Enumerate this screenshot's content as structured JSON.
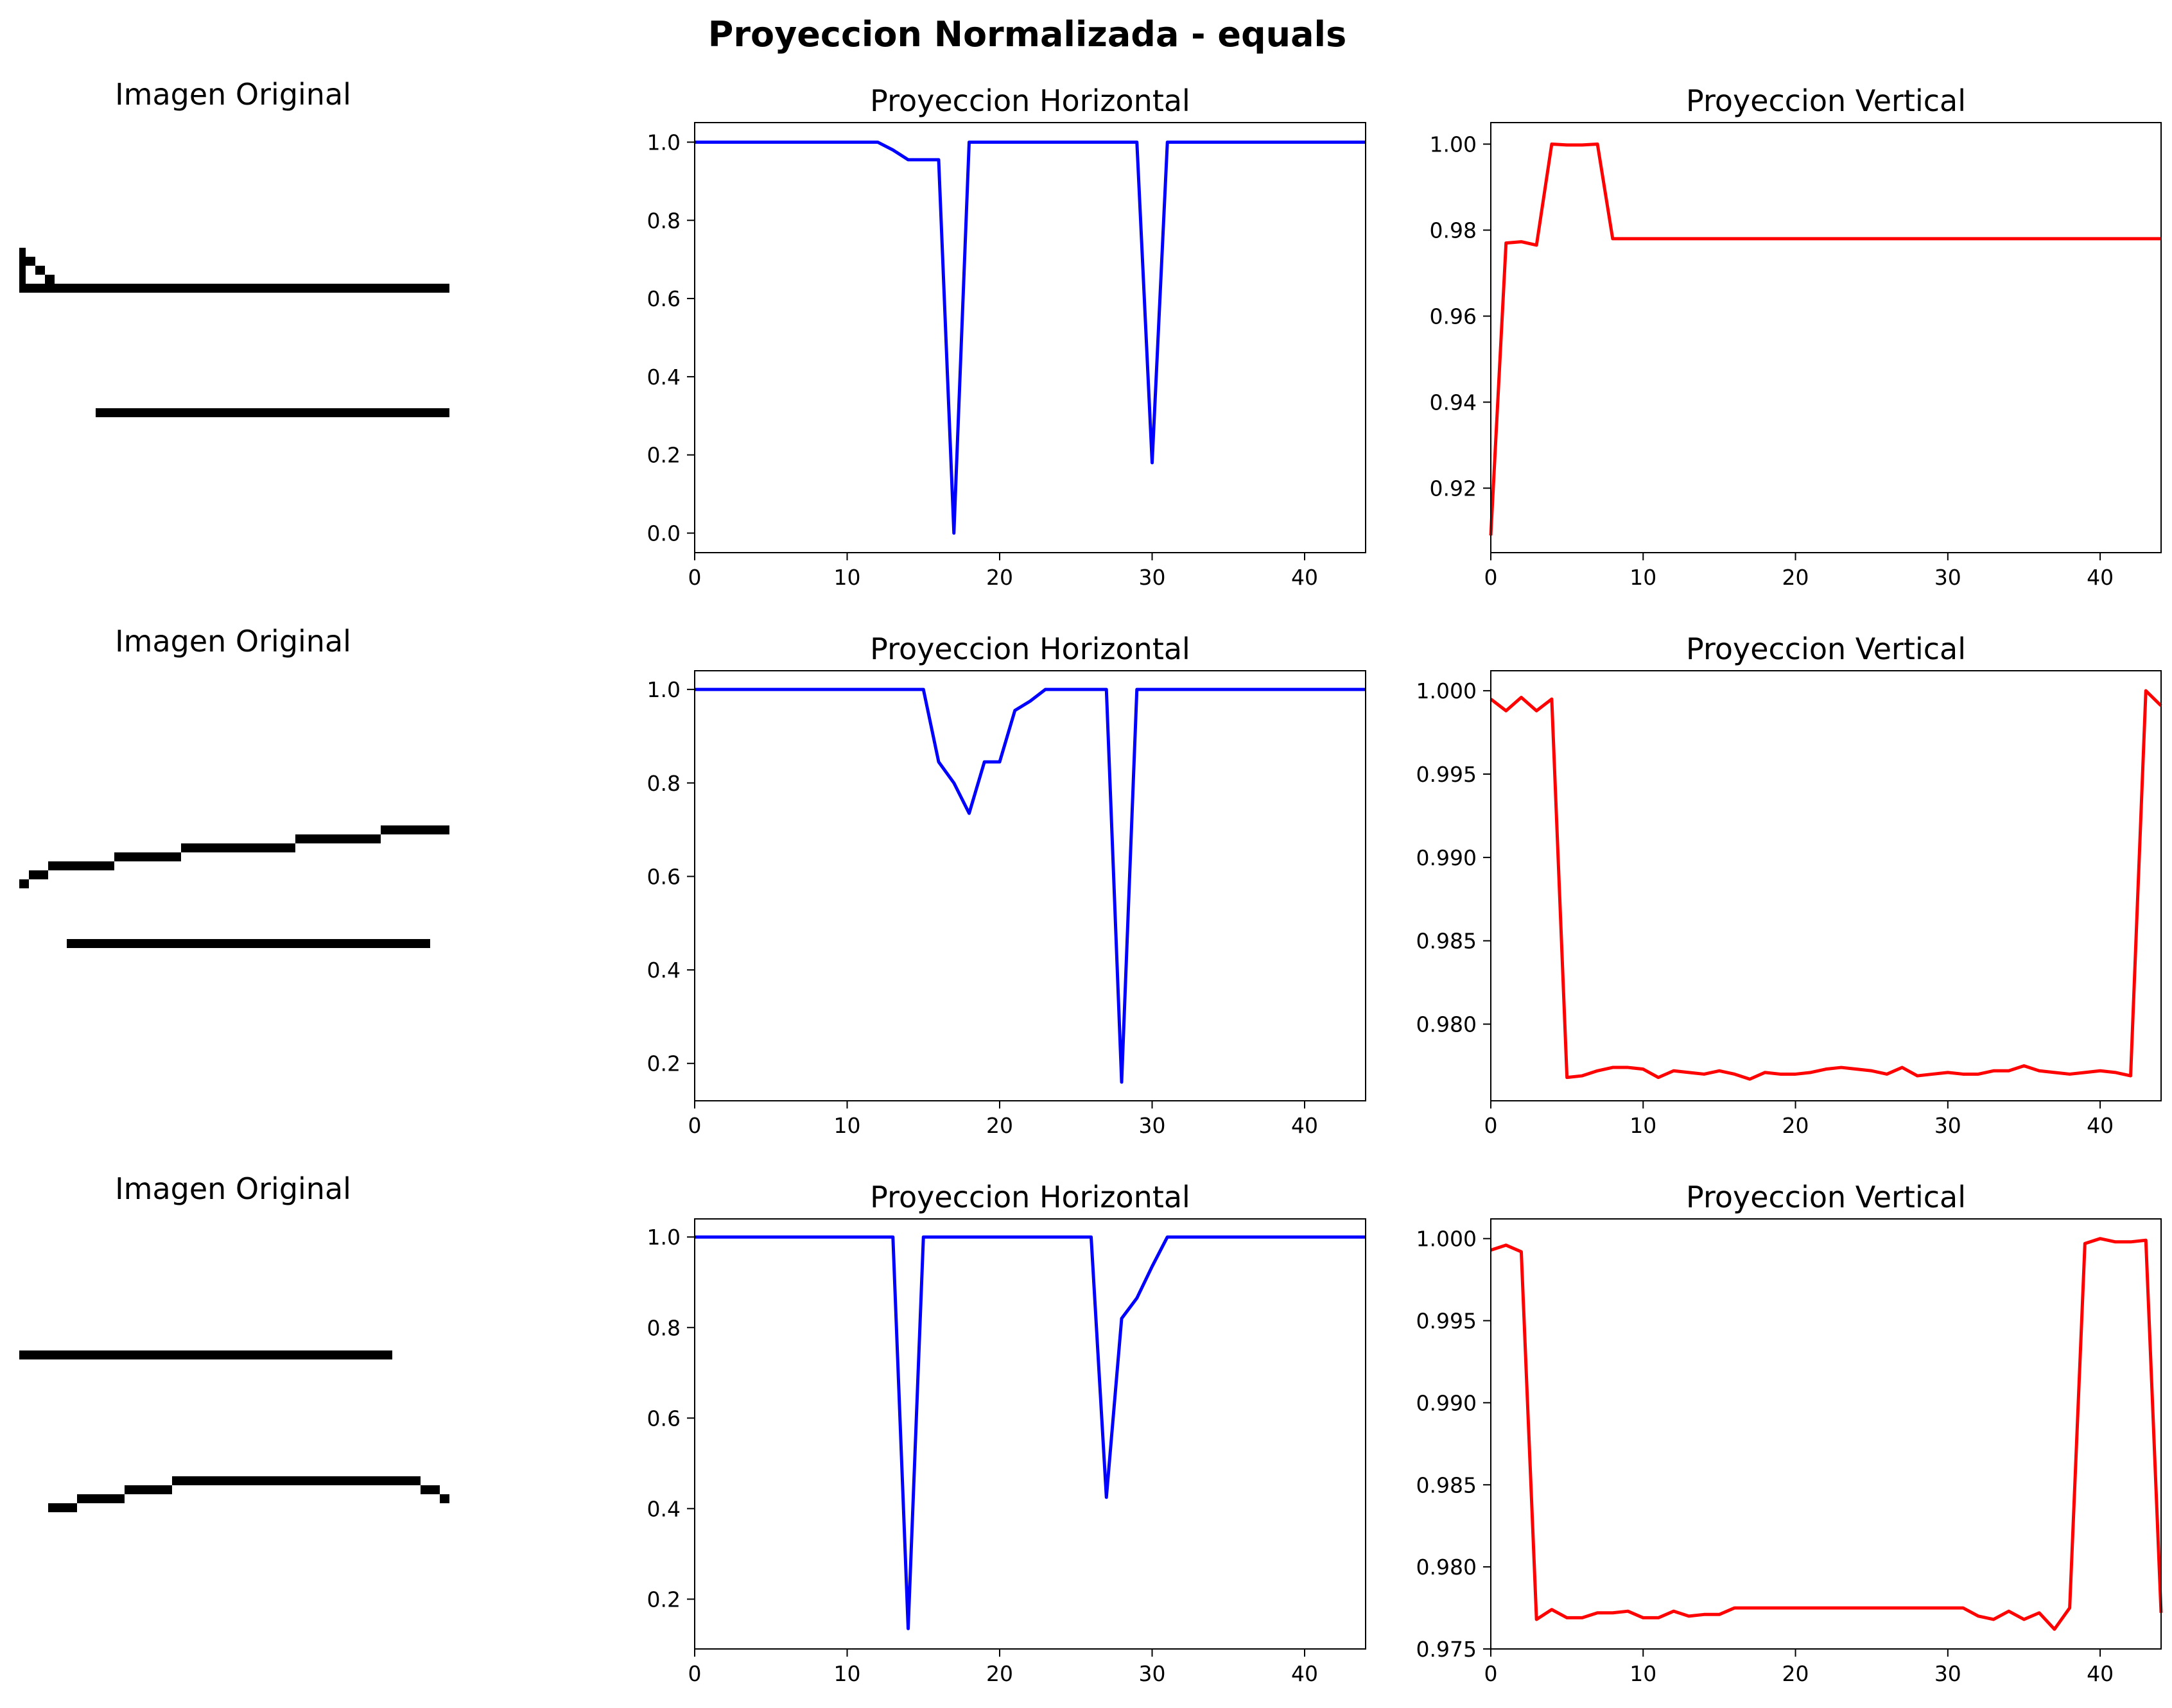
{
  "figure": {
    "title": "Proyeccion Normalizada - equals"
  },
  "colors": {
    "horizontal": "#0000ff",
    "vertical": "#ff0000",
    "ink": "#000000"
  },
  "chart_data": [
    {
      "type": "line",
      "row": 0,
      "column": "horizontal",
      "title": "Proyeccion Horizontal",
      "xlim": [
        0,
        44
      ],
      "ylim": [
        -0.05,
        1.05
      ],
      "x_ticks": [
        0,
        10,
        20,
        30,
        40
      ],
      "y_ticks": [
        0.0,
        0.2,
        0.4,
        0.6,
        0.8,
        1.0
      ],
      "y_tick_labels": [
        "0.0",
        "0.2",
        "0.4",
        "0.6",
        "0.8",
        "1.0"
      ],
      "series": [
        {
          "color": "#0000ff",
          "values": [
            1,
            1,
            1,
            1,
            1,
            1,
            1,
            1,
            1,
            1,
            1,
            1,
            1,
            0.98,
            0.955,
            0.955,
            0.955,
            0,
            1,
            1,
            1,
            1,
            1,
            1,
            1,
            1,
            1,
            1,
            1,
            1,
            0.18,
            1,
            1,
            1,
            1,
            1,
            1,
            1,
            1,
            1,
            1,
            1,
            1,
            1,
            1
          ]
        }
      ]
    },
    {
      "type": "line",
      "row": 0,
      "column": "vertical",
      "title": "Proyeccion Vertical",
      "xlim": [
        0,
        44
      ],
      "ylim": [
        0.905,
        1.005
      ],
      "x_ticks": [
        0,
        10,
        20,
        30,
        40
      ],
      "y_ticks": [
        0.92,
        0.94,
        0.96,
        0.98,
        1.0
      ],
      "y_tick_labels": [
        "0.92",
        "0.94",
        "0.96",
        "0.98",
        "1.00"
      ],
      "series": [
        {
          "color": "#ff0000",
          "values": [
            0.909,
            0.977,
            0.9773,
            0.9765,
            1,
            0.9998,
            0.9998,
            1,
            0.978,
            0.978,
            0.978,
            0.978,
            0.978,
            0.978,
            0.978,
            0.978,
            0.978,
            0.978,
            0.978,
            0.978,
            0.978,
            0.978,
            0.978,
            0.978,
            0.978,
            0.978,
            0.978,
            0.978,
            0.978,
            0.978,
            0.978,
            0.978,
            0.978,
            0.978,
            0.978,
            0.978,
            0.978,
            0.978,
            0.978,
            0.978,
            0.978,
            0.978,
            0.978,
            0.978,
            0.978
          ]
        }
      ]
    },
    {
      "type": "line",
      "row": 1,
      "column": "horizontal",
      "title": "Proyeccion Horizontal",
      "xlim": [
        0,
        44
      ],
      "ylim": [
        0.12,
        1.04
      ],
      "x_ticks": [
        0,
        10,
        20,
        30,
        40
      ],
      "y_ticks": [
        0.2,
        0.4,
        0.6,
        0.8,
        1.0
      ],
      "y_tick_labels": [
        "0.2",
        "0.4",
        "0.6",
        "0.8",
        "1.0"
      ],
      "series": [
        {
          "color": "#0000ff",
          "values": [
            1,
            1,
            1,
            1,
            1,
            1,
            1,
            1,
            1,
            1,
            1,
            1,
            1,
            1,
            1,
            1,
            0.845,
            0.8,
            0.735,
            0.845,
            0.845,
            0.955,
            0.975,
            1,
            1,
            1,
            1,
            1,
            0.16,
            1,
            1,
            1,
            1,
            1,
            1,
            1,
            1,
            1,
            1,
            1,
            1,
            1,
            1,
            1,
            1
          ]
        }
      ]
    },
    {
      "type": "line",
      "row": 1,
      "column": "vertical",
      "title": "Proyeccion Vertical",
      "xlim": [
        0,
        44
      ],
      "ylim": [
        0.9754,
        1.0012
      ],
      "x_ticks": [
        0,
        10,
        20,
        30,
        40
      ],
      "y_ticks": [
        0.98,
        0.985,
        0.99,
        0.995,
        1.0
      ],
      "y_tick_labels": [
        "0.980",
        "0.985",
        "0.990",
        "0.995",
        "1.000"
      ],
      "series": [
        {
          "color": "#ff0000",
          "values": [
            0.9995,
            0.9988,
            0.9996,
            0.9988,
            0.9995,
            0.9768,
            0.9769,
            0.9772,
            0.9774,
            0.9774,
            0.9773,
            0.9768,
            0.9772,
            0.9771,
            0.977,
            0.9772,
            0.977,
            0.9767,
            0.9771,
            0.977,
            0.977,
            0.9771,
            0.9773,
            0.9774,
            0.9773,
            0.9772,
            0.977,
            0.9774,
            0.9769,
            0.977,
            0.9771,
            0.977,
            0.977,
            0.9772,
            0.9772,
            0.9775,
            0.9772,
            0.9771,
            0.977,
            0.9771,
            0.9772,
            0.9771,
            0.9769,
            1.0,
            0.9991
          ]
        }
      ]
    },
    {
      "type": "line",
      "row": 2,
      "column": "horizontal",
      "title": "Proyeccion Horizontal",
      "xlim": [
        0,
        44
      ],
      "ylim": [
        0.09,
        1.04
      ],
      "x_ticks": [
        0,
        10,
        20,
        30,
        40
      ],
      "y_ticks": [
        0.2,
        0.4,
        0.6,
        0.8,
        1.0
      ],
      "y_tick_labels": [
        "0.2",
        "0.4",
        "0.6",
        "0.8",
        "1.0"
      ],
      "series": [
        {
          "color": "#0000ff",
          "values": [
            1,
            1,
            1,
            1,
            1,
            1,
            1,
            1,
            1,
            1,
            1,
            1,
            1,
            1,
            0.135,
            1,
            1,
            1,
            1,
            1,
            1,
            1,
            1,
            1,
            1,
            1,
            1,
            0.425,
            0.82,
            0.865,
            0.935,
            1,
            1,
            1,
            1,
            1,
            1,
            1,
            1,
            1,
            1,
            1,
            1,
            1,
            1
          ]
        }
      ]
    },
    {
      "type": "line",
      "row": 2,
      "column": "vertical",
      "title": "Proyeccion Vertical",
      "xlim": [
        0,
        44
      ],
      "ylim": [
        0.975,
        1.0012
      ],
      "x_ticks": [
        0,
        10,
        20,
        30,
        40
      ],
      "y_ticks": [
        0.975,
        0.98,
        0.985,
        0.99,
        0.995,
        1.0
      ],
      "y_tick_labels": [
        "0.975",
        "0.980",
        "0.985",
        "0.990",
        "0.995",
        "1.000"
      ],
      "series": [
        {
          "color": "#ff0000",
          "values": [
            0.9993,
            0.9996,
            0.9992,
            0.9768,
            0.9774,
            0.9769,
            0.9769,
            0.9772,
            0.9772,
            0.9773,
            0.9769,
            0.9769,
            0.9773,
            0.977,
            0.9771,
            0.9771,
            0.9775,
            0.9775,
            0.9775,
            0.9775,
            0.9775,
            0.9775,
            0.9775,
            0.9775,
            0.9775,
            0.9775,
            0.9775,
            0.9775,
            0.9775,
            0.9775,
            0.9775,
            0.9775,
            0.977,
            0.9768,
            0.9773,
            0.9768,
            0.9772,
            0.9762,
            0.9775,
            0.9997,
            1.0,
            0.9998,
            0.9998,
            0.9999,
            0.9772
          ]
        }
      ]
    }
  ],
  "images": [
    {
      "title": "Imagen Original",
      "row": 0
    },
    {
      "title": "Imagen Original",
      "row": 1
    },
    {
      "title": "Imagen Original",
      "row": 2
    }
  ]
}
